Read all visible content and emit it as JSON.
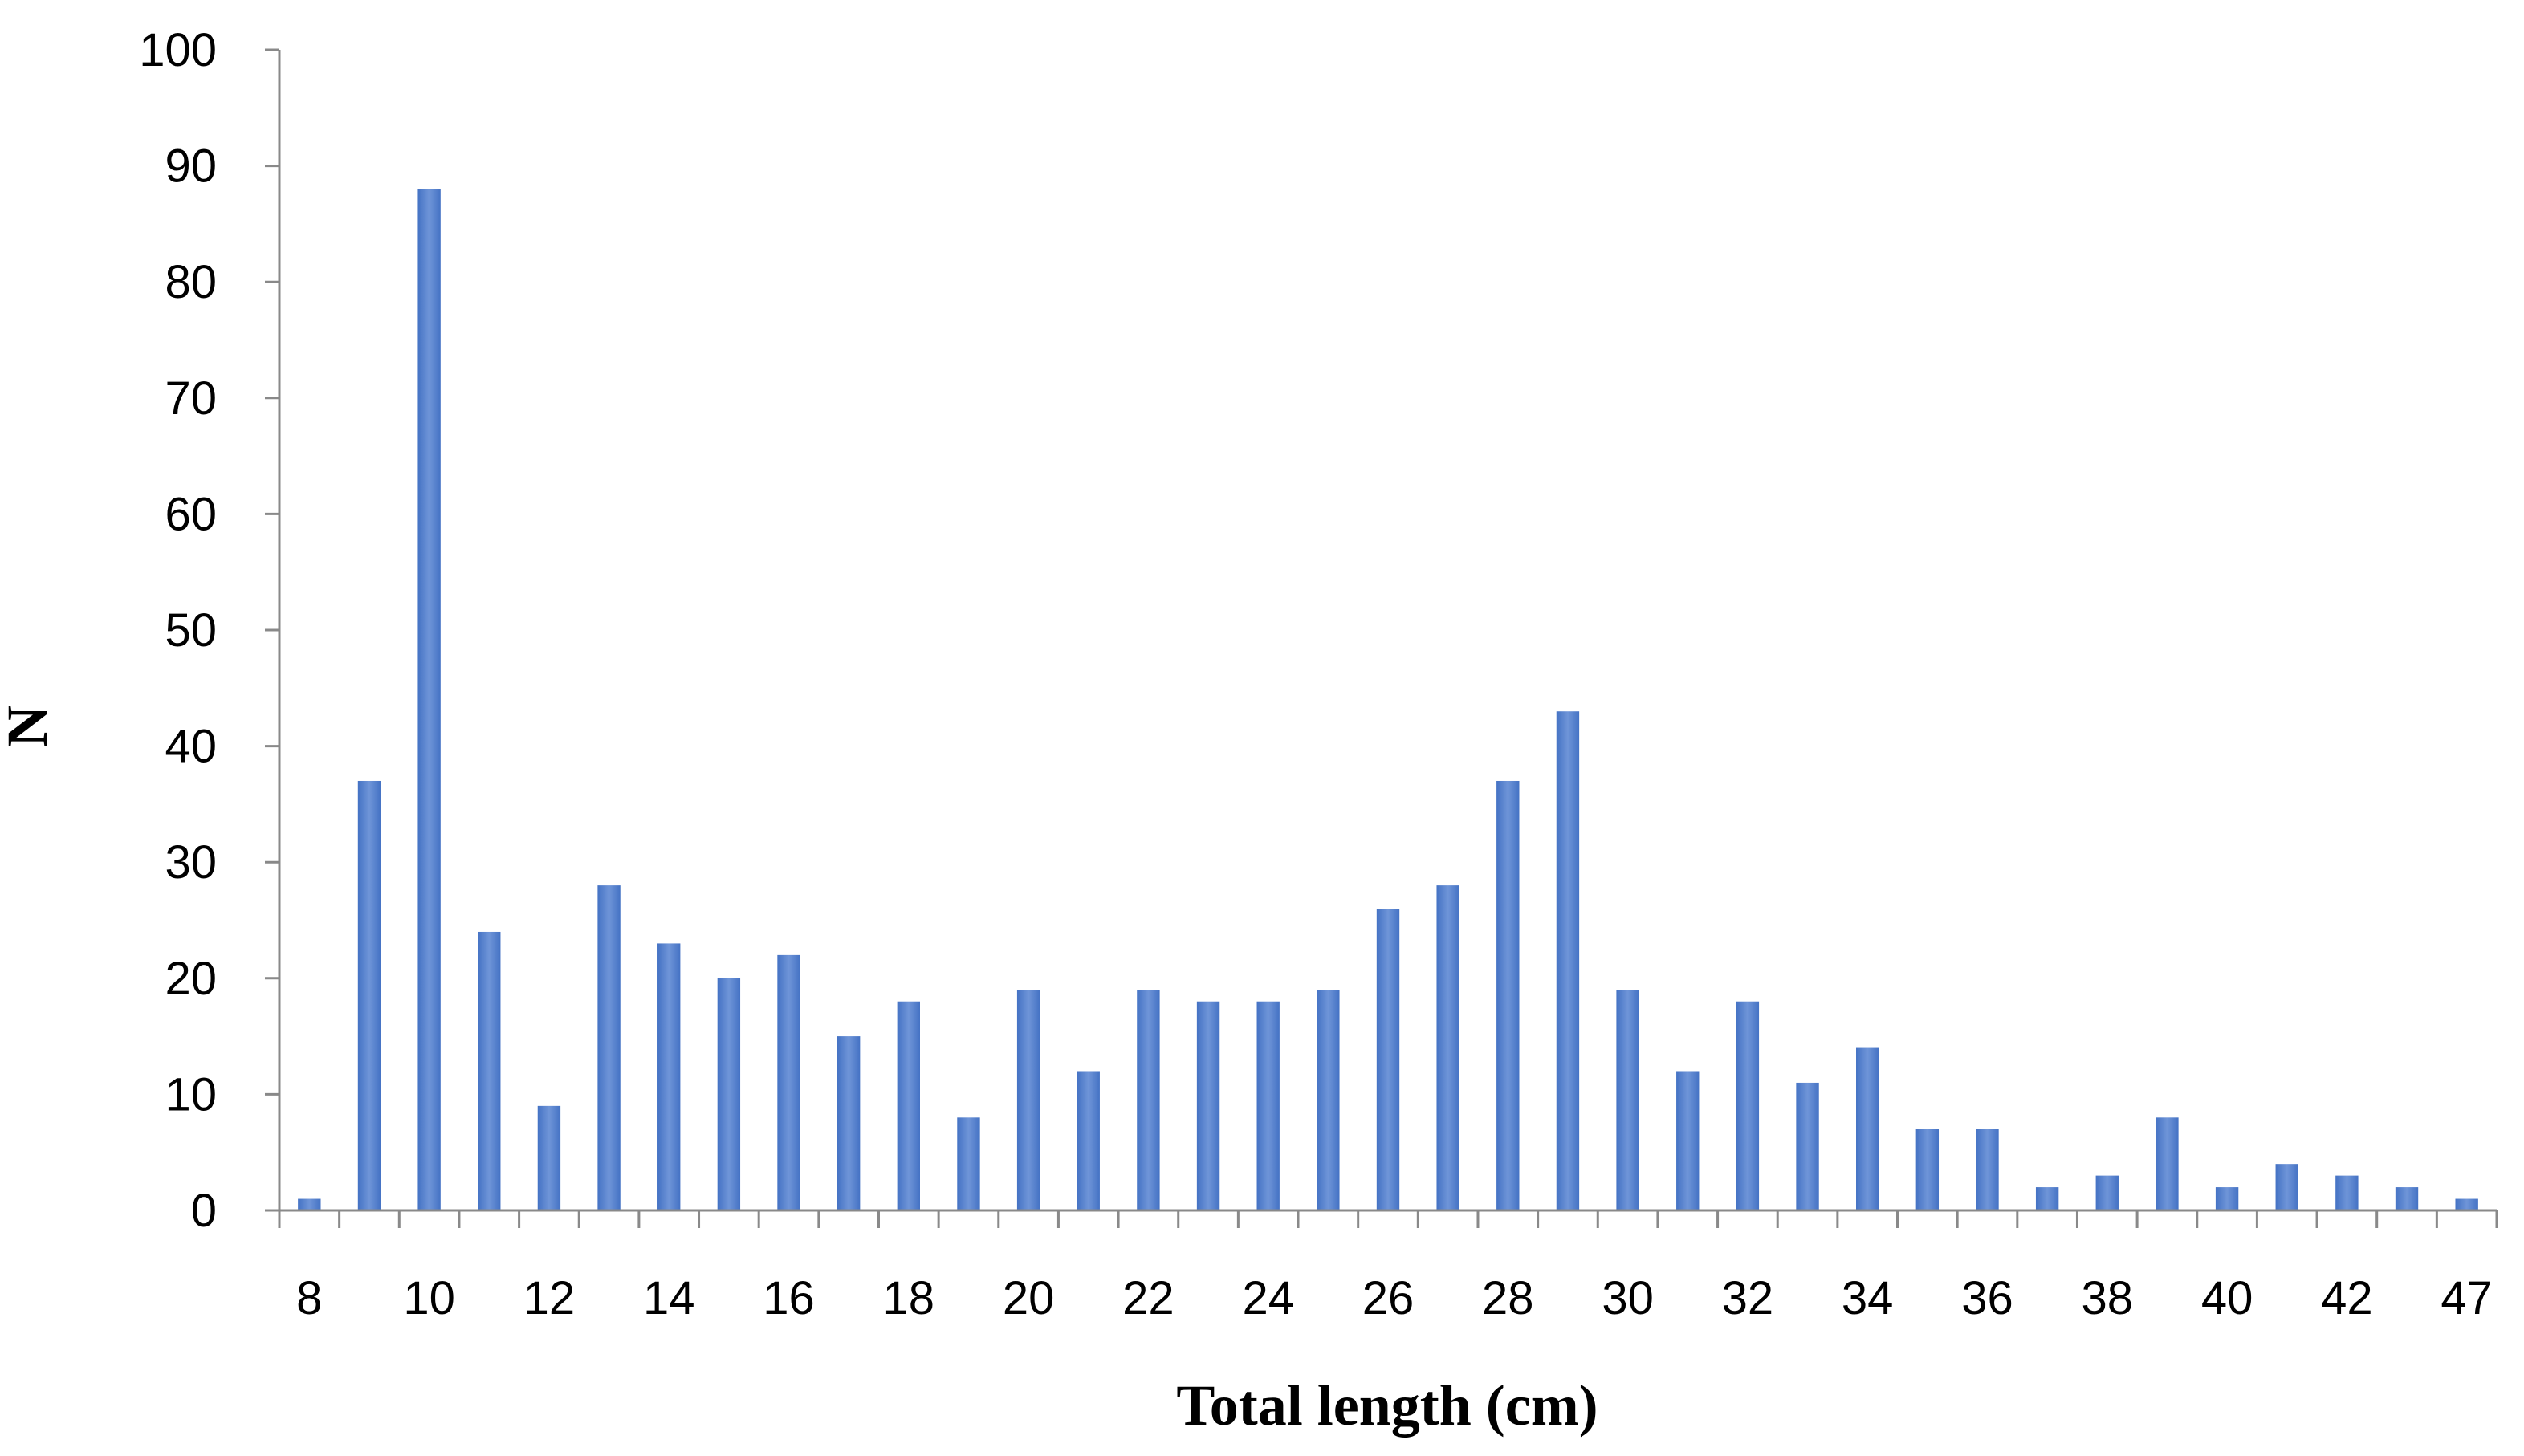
{
  "chart_data": {
    "type": "bar",
    "xlabel": "Total length (cm)",
    "ylabel": "N",
    "ylim": [
      0,
      100
    ],
    "yticks": [
      0,
      10,
      20,
      30,
      40,
      50,
      60,
      70,
      80,
      90,
      100
    ],
    "categories": [
      "8",
      "9",
      "10",
      "11",
      "12",
      "13",
      "14",
      "15",
      "16",
      "17",
      "18",
      "19",
      "20",
      "21",
      "22",
      "23",
      "24",
      "25",
      "26",
      "27",
      "28",
      "29",
      "30",
      "31",
      "32",
      "33",
      "34",
      "35",
      "36",
      "37",
      "38",
      "39",
      "40",
      "41",
      "42",
      "43",
      "47"
    ],
    "xtick_labels": [
      "8",
      "10",
      "12",
      "14",
      "16",
      "18",
      "20",
      "22",
      "24",
      "26",
      "28",
      "30",
      "32",
      "34",
      "36",
      "38",
      "40",
      "42",
      "47"
    ],
    "values": [
      1,
      37,
      88,
      24,
      9,
      28,
      23,
      20,
      22,
      15,
      18,
      8,
      19,
      12,
      19,
      18,
      18,
      19,
      26,
      28,
      37,
      43,
      19,
      12,
      18,
      11,
      14,
      7,
      7,
      2,
      3,
      8,
      2,
      4,
      3,
      2,
      1
    ],
    "grid": false,
    "legend": "none",
    "bar_color": "#4472c4",
    "bar_color_light": "#6f95d8"
  }
}
